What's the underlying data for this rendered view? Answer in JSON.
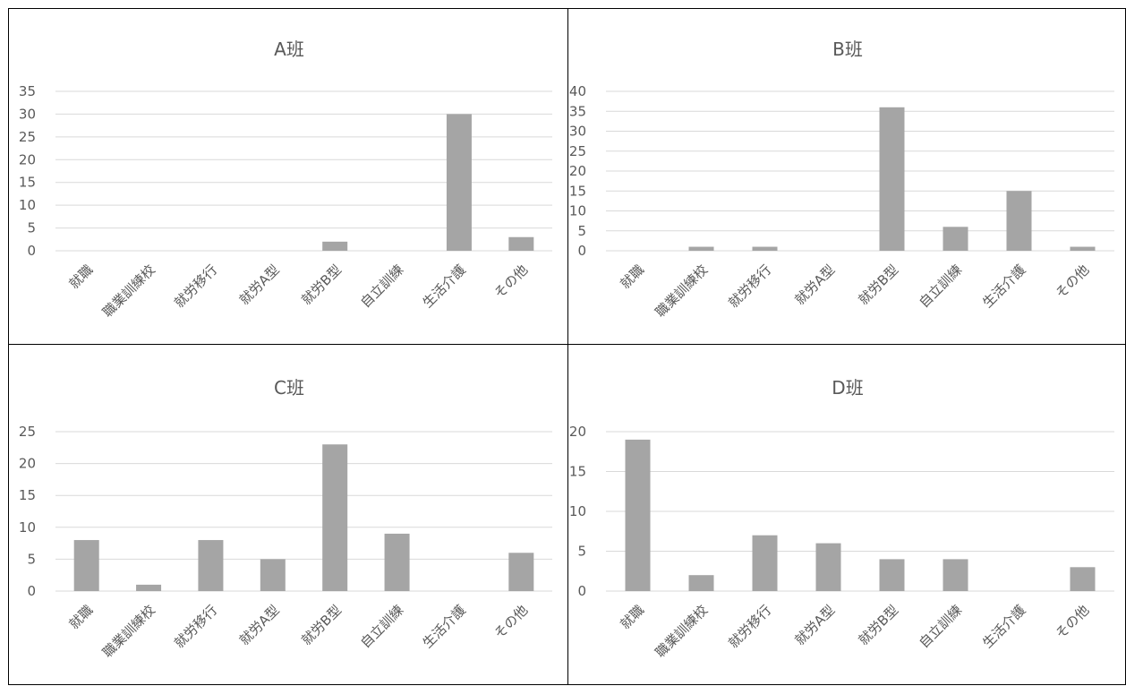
{
  "colors": {
    "bar": "#a5a5a5",
    "grid": "#d9d9d9",
    "text": "#595959",
    "border": "#000000"
  },
  "chart_data": [
    {
      "type": "bar",
      "title": "A班",
      "categories": [
        "就職",
        "職業訓練校",
        "就労移行",
        "就労A型",
        "就労B型",
        "自立訓練",
        "生活介護",
        "その他"
      ],
      "values": [
        0,
        0,
        0,
        0,
        2,
        0,
        30,
        3
      ],
      "yticks": [
        0,
        5,
        10,
        15,
        20,
        25,
        30,
        35
      ],
      "ylim": [
        0,
        35
      ],
      "grid": true,
      "legend": "none"
    },
    {
      "type": "bar",
      "title": "B班",
      "categories": [
        "就職",
        "職業訓練校",
        "就労移行",
        "就労A型",
        "就労B型",
        "自立訓練",
        "生活介護",
        "その他"
      ],
      "values": [
        0,
        1,
        1,
        0,
        36,
        6,
        15,
        1
      ],
      "yticks": [
        0,
        5,
        10,
        15,
        20,
        25,
        30,
        35,
        40
      ],
      "ylim": [
        0,
        40
      ],
      "grid": true,
      "legend": "none"
    },
    {
      "type": "bar",
      "title": "C班",
      "categories": [
        "就職",
        "職業訓練校",
        "就労移行",
        "就労A型",
        "就労B型",
        "自立訓練",
        "生活介護",
        "その他"
      ],
      "values": [
        8,
        1,
        8,
        5,
        23,
        9,
        0,
        6
      ],
      "yticks": [
        0,
        5,
        10,
        15,
        20,
        25
      ],
      "ylim": [
        0,
        25
      ],
      "grid": true,
      "legend": "none"
    },
    {
      "type": "bar",
      "title": "D班",
      "categories": [
        "就職",
        "職業訓練校",
        "就労移行",
        "就労A型",
        "就労B型",
        "自立訓練",
        "生活介護",
        "その他"
      ],
      "values": [
        19,
        2,
        7,
        6,
        4,
        4,
        0,
        3
      ],
      "yticks": [
        0,
        5,
        10,
        15,
        20
      ],
      "ylim": [
        0,
        20
      ],
      "grid": true,
      "legend": "none"
    }
  ]
}
